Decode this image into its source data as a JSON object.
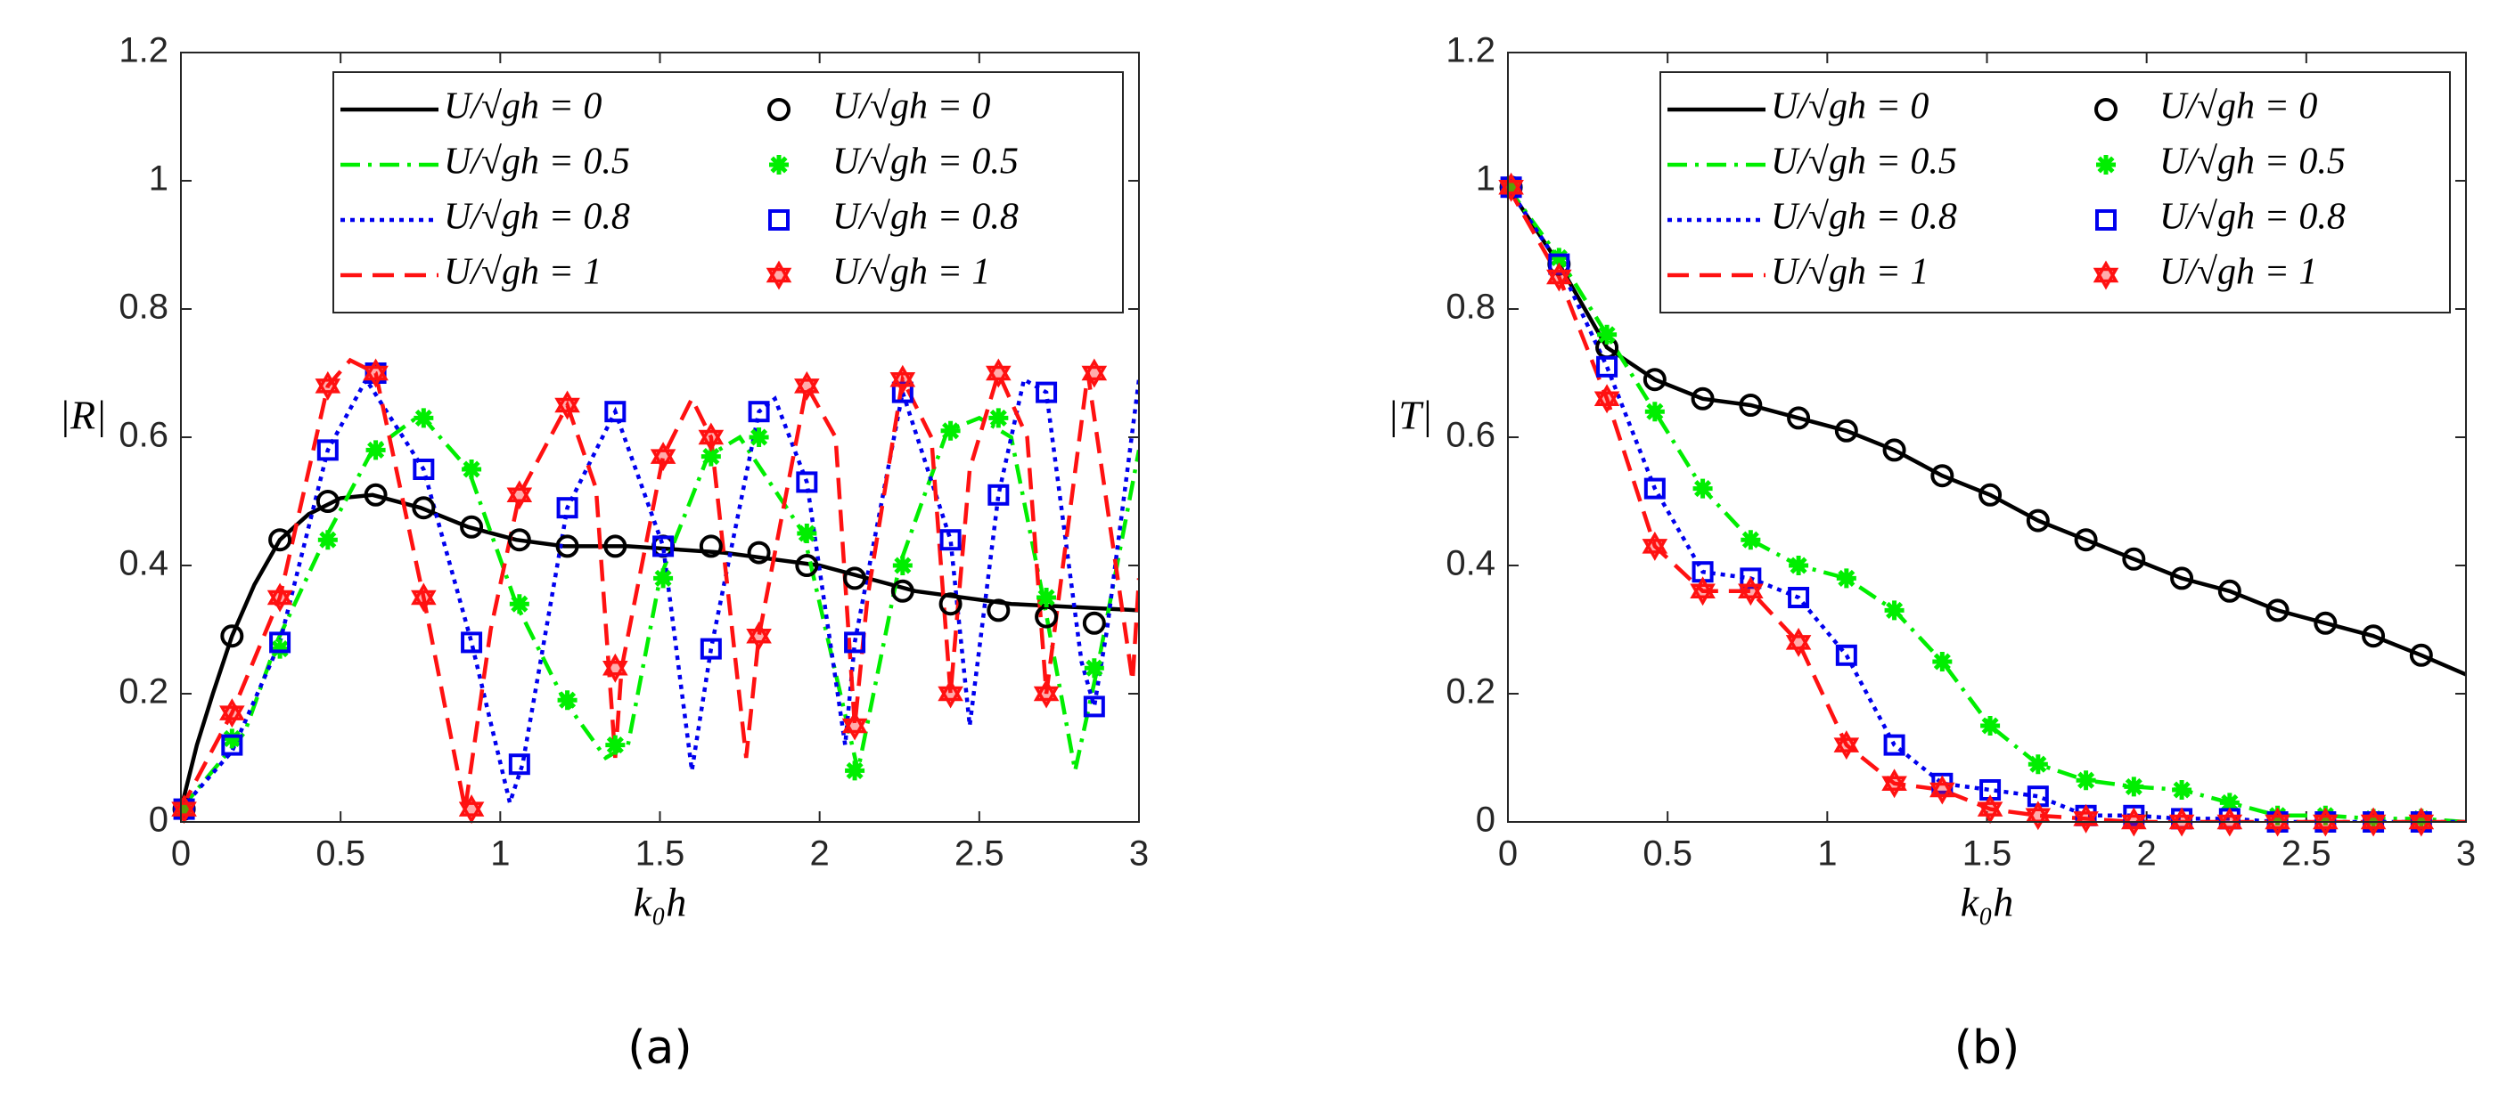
{
  "chart_data": [
    {
      "type": "line",
      "label": "(a)",
      "xlabel": "k₀h",
      "ylabel": "|R|",
      "xlim": [
        0,
        3
      ],
      "ylim": [
        0,
        1.2
      ],
      "xticks": [
        0,
        0.5,
        1,
        1.5,
        2,
        2.5,
        3
      ],
      "yticks": [
        0,
        0.2,
        0.4,
        0.6,
        0.8,
        1,
        1.2
      ],
      "series": [
        {
          "name": "U/√gh = 0",
          "color": "#000000",
          "style": "line",
          "dash": "solid",
          "x": [
            0,
            0.05,
            0.1,
            0.16,
            0.23,
            0.31,
            0.4,
            0.5,
            0.6,
            0.75,
            0.9,
            1.05,
            1.2,
            1.4,
            1.7,
            2,
            2.3,
            2.6,
            3
          ],
          "values": [
            0.02,
            0.12,
            0.2,
            0.29,
            0.37,
            0.44,
            0.48,
            0.505,
            0.51,
            0.49,
            0.46,
            0.44,
            0.43,
            0.43,
            0.42,
            0.4,
            0.36,
            0.34,
            0.33
          ]
        },
        {
          "name": "U/√gh = 0.5",
          "color": "#00ee00",
          "style": "line",
          "dash": "dashdot",
          "x": [
            0,
            0.2,
            0.3,
            0.45,
            0.6,
            0.75,
            0.9,
            1.05,
            1.2,
            1.33,
            1.4,
            1.5,
            1.65,
            1.75,
            1.95,
            2.12,
            2.25,
            2.4,
            2.5,
            2.6,
            2.7,
            2.8,
            2.87,
            3
          ],
          "values": [
            0.02,
            0.14,
            0.28,
            0.44,
            0.58,
            0.635,
            0.55,
            0.34,
            0.19,
            0.1,
            0.12,
            0.38,
            0.57,
            0.6,
            0.45,
            0.08,
            0.4,
            0.61,
            0.63,
            0.6,
            0.35,
            0.08,
            0.24,
            0.58
          ]
        },
        {
          "name": "U/√gh = 0.8",
          "color": "#0000ee",
          "style": "line",
          "dash": "dotted",
          "x": [
            0,
            0.16,
            0.31,
            0.46,
            0.58,
            0.76,
            0.91,
            1.03,
            1.07,
            1.21,
            1.36,
            1.51,
            1.6,
            1.66,
            1.81,
            1.86,
            1.96,
            2.08,
            2.11,
            2.26,
            2.41,
            2.47,
            2.56,
            2.64,
            2.71,
            2.82,
            2.86,
            2.9,
            3
          ],
          "values": [
            0.02,
            0.11,
            0.28,
            0.58,
            0.69,
            0.55,
            0.28,
            0.03,
            0.09,
            0.49,
            0.64,
            0.43,
            0.08,
            0.27,
            0.64,
            0.66,
            0.53,
            0.12,
            0.28,
            0.67,
            0.44,
            0.15,
            0.51,
            0.69,
            0.67,
            0.25,
            0.18,
            0.3,
            0.69
          ]
        },
        {
          "name": "U/√gh = 1",
          "color": "#ff1111",
          "style": "line",
          "dash": "dashed",
          "x": [
            0,
            0.16,
            0.31,
            0.46,
            0.53,
            0.61,
            0.76,
            0.89,
            0.97,
            1.06,
            1.21,
            1.3,
            1.36,
            1.38,
            1.51,
            1.6,
            1.66,
            1.77,
            1.81,
            1.96,
            2.05,
            2.11,
            2.15,
            2.26,
            2.35,
            2.41,
            2.47,
            2.56,
            2.65,
            2.71,
            2.84,
            2.98,
            3
          ],
          "values": [
            0.02,
            0.17,
            0.35,
            0.68,
            0.72,
            0.7,
            0.35,
            0.02,
            0.3,
            0.51,
            0.65,
            0.52,
            0.1,
            0.24,
            0.57,
            0.66,
            0.6,
            0.1,
            0.29,
            0.68,
            0.6,
            0.15,
            0.35,
            0.69,
            0.6,
            0.2,
            0.55,
            0.7,
            0.6,
            0.2,
            0.7,
            0.22,
            0.38
          ]
        },
        {
          "name": "U/√gh = 0",
          "color": "#000000",
          "style": "marker",
          "marker": "circle",
          "x": [
            0.01,
            0.16,
            0.31,
            0.46,
            0.61,
            0.76,
            0.91,
            1.06,
            1.21,
            1.36,
            1.51,
            1.66,
            1.81,
            1.96,
            2.11,
            2.26,
            2.41,
            2.56,
            2.71,
            2.86
          ],
          "values": [
            0.02,
            0.29,
            0.44,
            0.5,
            0.51,
            0.49,
            0.46,
            0.44,
            0.43,
            0.43,
            0.43,
            0.43,
            0.42,
            0.4,
            0.38,
            0.36,
            0.34,
            0.33,
            0.32,
            0.31
          ]
        },
        {
          "name": "U/√gh = 0.5",
          "color": "#00ee00",
          "style": "marker",
          "marker": "asterisk",
          "x": [
            0.01,
            0.16,
            0.31,
            0.46,
            0.61,
            0.76,
            0.91,
            1.06,
            1.21,
            1.36,
            1.51,
            1.66,
            1.81,
            1.96,
            2.11,
            2.26,
            2.41,
            2.56,
            2.71,
            2.86
          ],
          "values": [
            0.02,
            0.13,
            0.27,
            0.44,
            0.58,
            0.63,
            0.55,
            0.34,
            0.19,
            0.12,
            0.38,
            0.57,
            0.6,
            0.45,
            0.08,
            0.4,
            0.61,
            0.63,
            0.35,
            0.24
          ]
        },
        {
          "name": "U/√gh = 0.8",
          "color": "#0000ee",
          "style": "marker",
          "marker": "square",
          "x": [
            0.01,
            0.16,
            0.31,
            0.46,
            0.61,
            0.76,
            0.91,
            1.06,
            1.21,
            1.36,
            1.51,
            1.66,
            1.81,
            1.96,
            2.11,
            2.26,
            2.41,
            2.56,
            2.71,
            2.86
          ],
          "values": [
            0.02,
            0.12,
            0.28,
            0.58,
            0.7,
            0.55,
            0.28,
            0.09,
            0.49,
            0.64,
            0.43,
            0.27,
            0.64,
            0.53,
            0.28,
            0.67,
            0.44,
            0.51,
            0.67,
            0.18
          ]
        },
        {
          "name": "U/√gh = 1",
          "color": "#ff1111",
          "style": "marker",
          "marker": "hexagram",
          "x": [
            0.01,
            0.16,
            0.31,
            0.46,
            0.61,
            0.76,
            0.91,
            1.06,
            1.21,
            1.36,
            1.51,
            1.66,
            1.81,
            1.96,
            2.11,
            2.26,
            2.41,
            2.56,
            2.71,
            2.86
          ],
          "values": [
            0.02,
            0.17,
            0.35,
            0.68,
            0.7,
            0.35,
            0.02,
            0.51,
            0.65,
            0.24,
            0.57,
            0.6,
            0.29,
            0.68,
            0.15,
            0.69,
            0.2,
            0.7,
            0.2,
            0.7
          ]
        }
      ]
    },
    {
      "type": "line",
      "label": "(b)",
      "xlabel": "k₀h",
      "ylabel": "|T|",
      "xlim": [
        0,
        3
      ],
      "ylim": [
        0,
        1.2
      ],
      "xticks": [
        0,
        0.5,
        1,
        1.5,
        2,
        2.5,
        3
      ],
      "yticks": [
        0,
        0.2,
        0.4,
        0.6,
        0.8,
        1,
        1.2
      ],
      "series": [
        {
          "name": "U/√gh = 0",
          "color": "#000000",
          "style": "line",
          "dash": "solid",
          "x": [
            0,
            0.16,
            0.31,
            0.46,
            0.61,
            0.76,
            0.91,
            1.06,
            1.21,
            1.36,
            1.51,
            1.66,
            1.81,
            1.96,
            2.11,
            2.26,
            2.41,
            2.56,
            2.71,
            2.86,
            3
          ],
          "values": [
            0.99,
            0.87,
            0.74,
            0.69,
            0.66,
            0.65,
            0.63,
            0.61,
            0.58,
            0.54,
            0.51,
            0.47,
            0.44,
            0.41,
            0.38,
            0.36,
            0.33,
            0.31,
            0.29,
            0.26,
            0.23
          ]
        },
        {
          "name": "U/√gh = 0.5",
          "color": "#00ee00",
          "style": "line",
          "dash": "dashdot",
          "x": [
            0,
            0.16,
            0.31,
            0.46,
            0.61,
            0.76,
            0.91,
            1.06,
            1.21,
            1.36,
            1.51,
            1.66,
            1.81,
            1.96,
            2.11,
            2.26,
            2.41,
            2.56,
            2.71,
            2.86,
            3
          ],
          "values": [
            0.99,
            0.88,
            0.76,
            0.64,
            0.52,
            0.44,
            0.4,
            0.38,
            0.33,
            0.25,
            0.15,
            0.09,
            0.065,
            0.055,
            0.05,
            0.03,
            0.01,
            0.01,
            0.005,
            0.005,
            0
          ]
        },
        {
          "name": "U/√gh = 0.8",
          "color": "#0000ee",
          "style": "line",
          "dash": "dotted",
          "x": [
            0,
            0.16,
            0.31,
            0.46,
            0.61,
            0.76,
            0.91,
            1.06,
            1.21,
            1.36,
            1.51,
            1.66,
            1.81,
            1.96,
            2.11,
            2.26,
            2.41,
            2.56,
            2.71,
            2.86,
            3
          ],
          "values": [
            0.99,
            0.87,
            0.71,
            0.52,
            0.39,
            0.38,
            0.35,
            0.26,
            0.12,
            0.06,
            0.05,
            0.04,
            0.01,
            0.01,
            0.005,
            0.005,
            0,
            0,
            0,
            0,
            0
          ]
        },
        {
          "name": "U/√gh = 1",
          "color": "#ff1111",
          "style": "line",
          "dash": "dashed",
          "x": [
            0,
            0.16,
            0.31,
            0.46,
            0.61,
            0.76,
            0.91,
            1.06,
            1.21,
            1.36,
            1.51,
            1.66,
            1.81,
            1.96,
            2.11,
            2.26,
            2.41,
            2.56,
            2.71,
            2.86,
            3
          ],
          "values": [
            0.99,
            0.85,
            0.66,
            0.43,
            0.36,
            0.36,
            0.28,
            0.12,
            0.06,
            0.05,
            0.02,
            0.01,
            0.005,
            0,
            0,
            0,
            0,
            0,
            0,
            0,
            0
          ]
        },
        {
          "name": "U/√gh = 0",
          "color": "#000000",
          "style": "marker",
          "marker": "circle",
          "x": [
            0.01,
            0.16,
            0.31,
            0.46,
            0.61,
            0.76,
            0.91,
            1.06,
            1.21,
            1.36,
            1.51,
            1.66,
            1.81,
            1.96,
            2.11,
            2.26,
            2.41,
            2.56,
            2.71,
            2.86
          ],
          "values": [
            0.99,
            0.87,
            0.74,
            0.69,
            0.66,
            0.65,
            0.63,
            0.61,
            0.58,
            0.54,
            0.51,
            0.47,
            0.44,
            0.41,
            0.38,
            0.36,
            0.33,
            0.31,
            0.29,
            0.26
          ]
        },
        {
          "name": "U/√gh = 0.5",
          "color": "#00ee00",
          "style": "marker",
          "marker": "asterisk",
          "x": [
            0.01,
            0.16,
            0.31,
            0.46,
            0.61,
            0.76,
            0.91,
            1.06,
            1.21,
            1.36,
            1.51,
            1.66,
            1.81,
            1.96,
            2.11,
            2.26,
            2.41,
            2.56,
            2.71,
            2.86
          ],
          "values": [
            0.99,
            0.88,
            0.76,
            0.64,
            0.52,
            0.44,
            0.4,
            0.38,
            0.33,
            0.25,
            0.15,
            0.09,
            0.065,
            0.055,
            0.05,
            0.03,
            0.01,
            0.01,
            0.005,
            0.005
          ]
        },
        {
          "name": "U/√gh = 0.8",
          "color": "#0000ee",
          "style": "marker",
          "marker": "square",
          "x": [
            0.01,
            0.16,
            0.31,
            0.46,
            0.61,
            0.76,
            0.91,
            1.06,
            1.21,
            1.36,
            1.51,
            1.66,
            1.81,
            1.96,
            2.11,
            2.26,
            2.41,
            2.56,
            2.71,
            2.86
          ],
          "values": [
            0.99,
            0.87,
            0.71,
            0.52,
            0.39,
            0.38,
            0.35,
            0.26,
            0.12,
            0.06,
            0.05,
            0.04,
            0.01,
            0.01,
            0.005,
            0.005,
            0,
            0,
            0,
            0
          ]
        },
        {
          "name": "U/√gh = 1",
          "color": "#ff1111",
          "style": "marker",
          "marker": "hexagram",
          "x": [
            0.01,
            0.16,
            0.31,
            0.46,
            0.61,
            0.76,
            0.91,
            1.06,
            1.21,
            1.36,
            1.51,
            1.66,
            1.81,
            1.96,
            2.11,
            2.26,
            2.41,
            2.56,
            2.71,
            2.86
          ],
          "values": [
            0.99,
            0.85,
            0.66,
            0.43,
            0.36,
            0.36,
            0.28,
            0.12,
            0.06,
            0.05,
            0.02,
            0.01,
            0.005,
            0,
            0,
            0,
            0,
            0,
            0,
            0
          ]
        }
      ]
    }
  ]
}
